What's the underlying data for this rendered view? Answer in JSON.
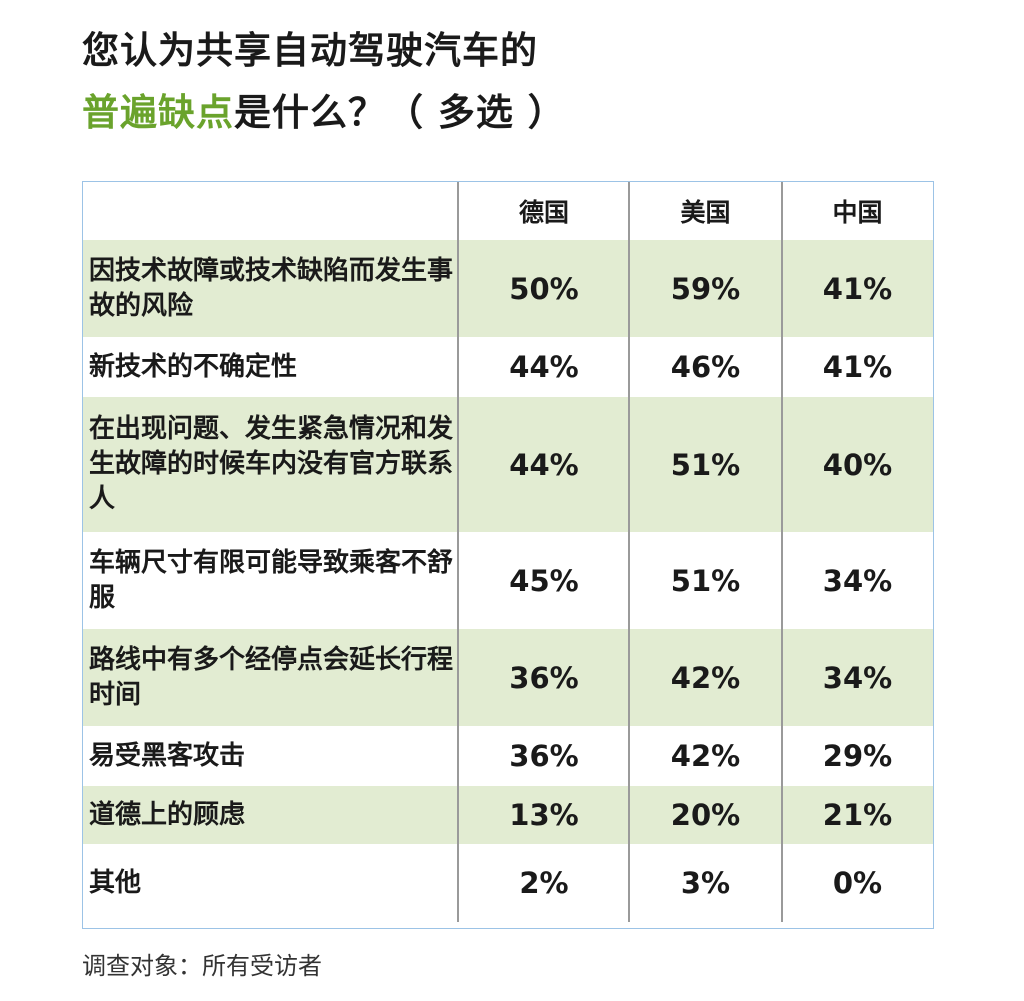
{
  "title": {
    "line1": "您认为共享自动驾驶汽车的",
    "line2_highlight": "普遍缺点",
    "line2_rest": "是什么？（ 多选 ）",
    "highlight_color": "#6aa32c"
  },
  "chart_data": {
    "type": "table",
    "columns": [
      "德国",
      "美国",
      "中国"
    ],
    "rows": [
      {
        "label": "因技术故障或技术缺陷而发生事故的风险",
        "values": [
          "50%",
          "59%",
          "41%"
        ]
      },
      {
        "label": "新技术的不确定性",
        "values": [
          "44%",
          "46%",
          "41%"
        ]
      },
      {
        "label": "在出现问题、发生紧急情况和发生故障的时候车内没有官方联系人",
        "values": [
          "44%",
          "51%",
          "40%"
        ]
      },
      {
        "label": "车辆尺寸有限可能导致乘客不舒服",
        "values": [
          "45%",
          "51%",
          "34%"
        ]
      },
      {
        "label": "路线中有多个经停点会延长行程时间",
        "values": [
          "36%",
          "42%",
          "34%"
        ]
      },
      {
        "label": "易受黑客攻击",
        "values": [
          "36%",
          "42%",
          "29%"
        ]
      },
      {
        "label": "道德上的顾虑",
        "values": [
          "13%",
          "20%",
          "21%"
        ]
      },
      {
        "label": "其他",
        "values": [
          "2%",
          "3%",
          "0%"
        ]
      }
    ],
    "shaded_row_color": "#e2ecd2",
    "border_color": "#9cc3e6"
  },
  "footnote": "调查对象：所有受访者"
}
